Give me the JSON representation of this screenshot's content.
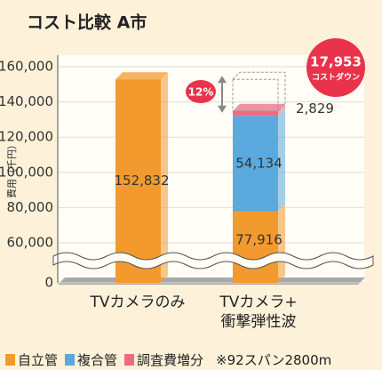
{
  "chart_data": {
    "type": "stacked_bar",
    "title": "コスト比較 A市",
    "ylabel": "費用（千円）",
    "categories": [
      "TVカメラのみ",
      "TVカメラ+\n衝撃弾性波"
    ],
    "series": [
      {
        "name": "自立管",
        "color": "#f39a2e",
        "values": [
          152832,
          77916
        ],
        "value_labels": [
          "152,832",
          "77,916"
        ]
      },
      {
        "name": "複合管",
        "color": "#5aa9df",
        "values": [
          null,
          54134
        ],
        "value_labels": [
          null,
          "54,134"
        ]
      },
      {
        "name": "調査費増分",
        "color": "#ef6b84",
        "values": [
          null,
          2829
        ],
        "value_labels": [
          null,
          "2,829"
        ]
      }
    ],
    "ylim": [
      0,
      160000
    ],
    "yticks": [
      0,
      {
        "value": 60000,
        "label": "60,000"
      },
      {
        "value": 80000,
        "label": "80,000"
      },
      {
        "value": 100000,
        "label": "100,000"
      },
      {
        "value": 120000,
        "label": "120,000"
      },
      {
        "value": 140000,
        "label": "140,000"
      },
      {
        "value": 160000,
        "label": "160,000"
      }
    ],
    "axis_break": true,
    "grid": true,
    "cost_down": {
      "value": 17953,
      "label": "17,953",
      "text": "コストダウン",
      "percent": "12%"
    },
    "note": "※92スパン2800m"
  }
}
